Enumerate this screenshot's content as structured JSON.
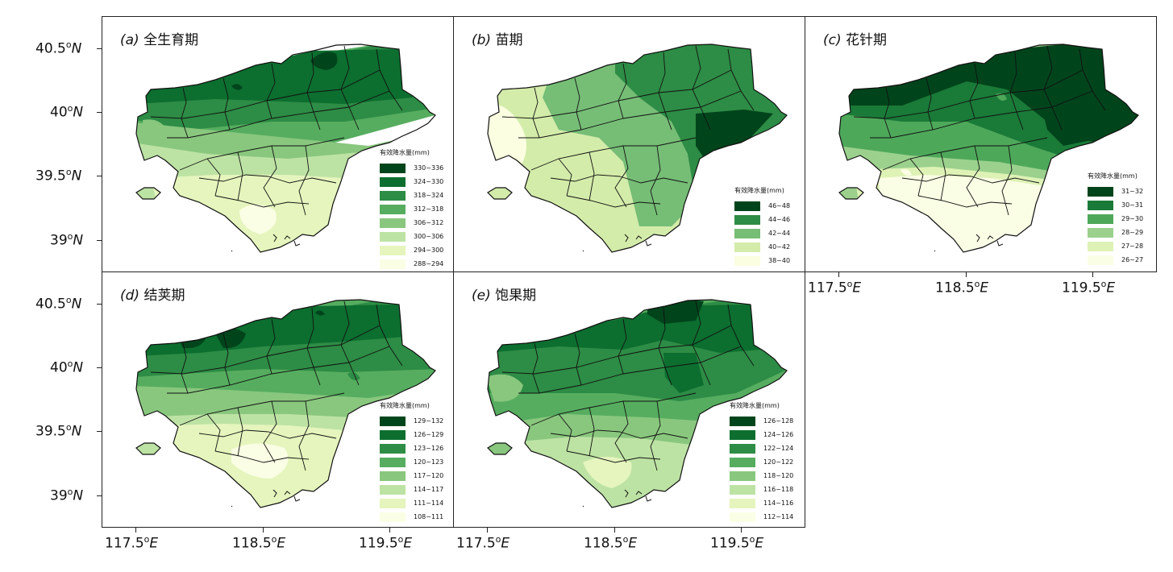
{
  "panels": [
    {
      "id": "a",
      "letter": "(a)",
      "name": "全生育期",
      "legend_title": "有效降水量(mm)",
      "legend": [
        "330~336",
        "324~330",
        "318~324",
        "312~318",
        "306~312",
        "300~306",
        "294~300",
        "288~294"
      ],
      "colors": [
        "#00441b",
        "#0c6e2f",
        "#2d8c45",
        "#56ad5f",
        "#89c77e",
        "#bde3a4",
        "#e5f5bd",
        "#fafee4"
      ]
    },
    {
      "id": "b",
      "letter": "(b)",
      "name": "苗期",
      "legend_title": "有效降水量(mm)",
      "legend": [
        "46~48",
        "44~46",
        "42~44",
        "40~42",
        "38~40"
      ],
      "colors": [
        "#00441b",
        "#2d8c45",
        "#76bd76",
        "#d3ecaa",
        "#fbfee0"
      ]
    },
    {
      "id": "c",
      "letter": "(c)",
      "name": "花针期",
      "legend_title": "有效降水量(mm)",
      "legend": [
        "31~32",
        "30~31",
        "29~30",
        "28~29",
        "27~28",
        "26~27"
      ],
      "colors": [
        "#00441b",
        "#1a7a38",
        "#4ea85a",
        "#9bd18d",
        "#def2b6",
        "#fafee4"
      ]
    },
    {
      "id": "d",
      "letter": "(d)",
      "name": "结荚期",
      "legend_title": "有效降水量(mm)",
      "legend": [
        "129~132",
        "126~129",
        "123~126",
        "120~123",
        "117~120",
        "114~117",
        "111~114",
        "108~111"
      ],
      "colors": [
        "#00441b",
        "#0c6e2f",
        "#2d8c45",
        "#56ad5f",
        "#89c77e",
        "#bde3a4",
        "#e5f5bd",
        "#fafee4"
      ]
    },
    {
      "id": "e",
      "letter": "(e)",
      "name": "饱果期",
      "legend_title": "有效降水量(mm)",
      "legend": [
        "126~128",
        "124~126",
        "122~124",
        "120~122",
        "118~120",
        "116~118",
        "114~116",
        "112~114"
      ],
      "colors": [
        "#00441b",
        "#0c6e2f",
        "#2d8c45",
        "#56ad5f",
        "#89c77e",
        "#bde3a4",
        "#e5f5bd",
        "#fafee4"
      ]
    }
  ],
  "lat_labels": [
    "40.5",
    "40",
    "39.5",
    "39"
  ],
  "lat_suffix": "N",
  "lon_labels": [
    "117.5",
    "118.5",
    "119.5"
  ],
  "lon_suffix": "E",
  "degree": "o"
}
